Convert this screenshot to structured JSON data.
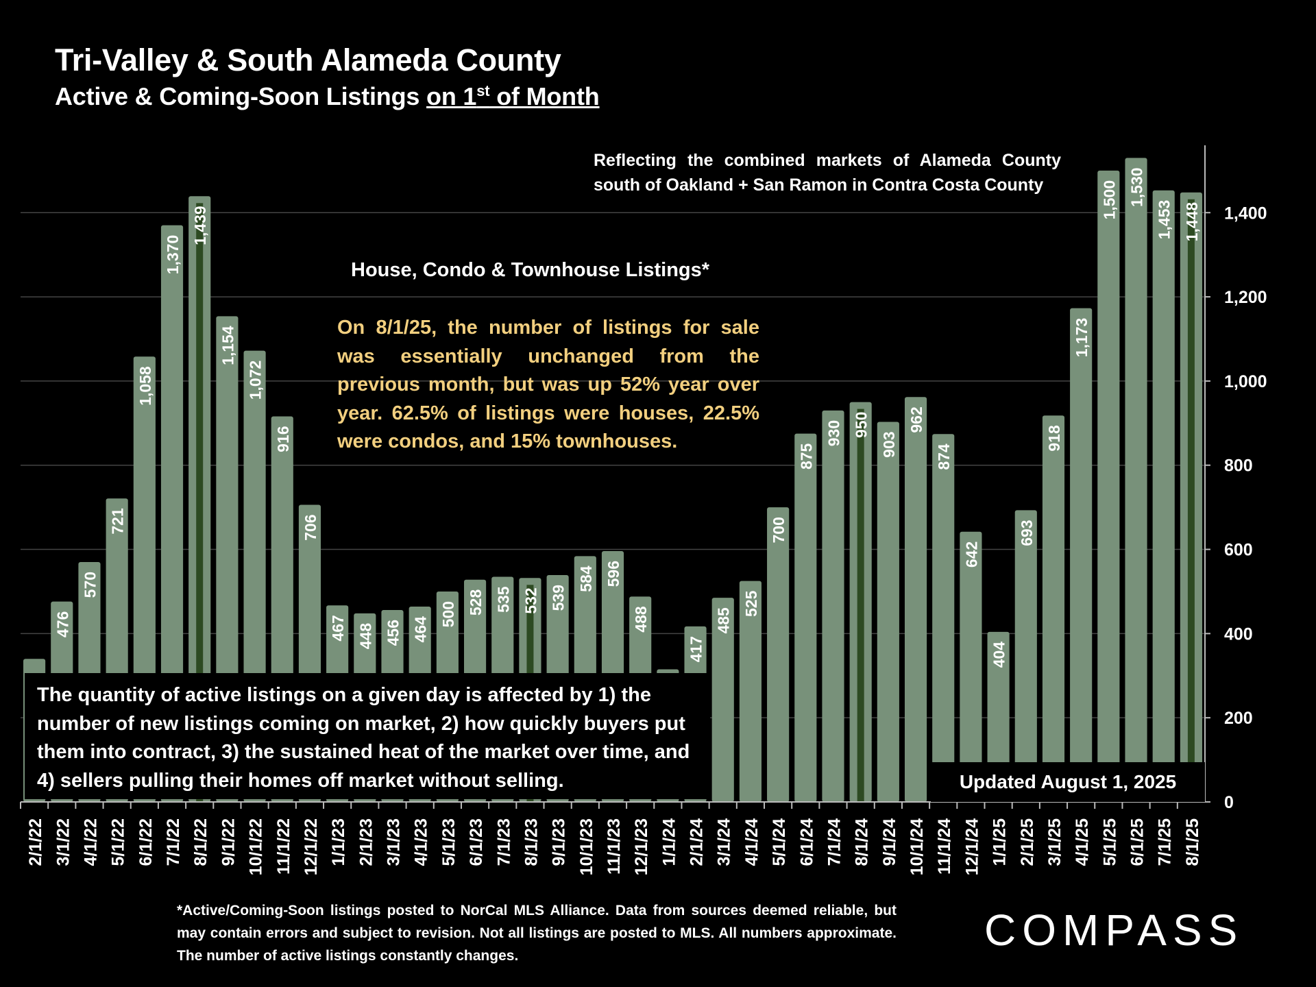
{
  "header": {
    "title": "Tri-Valley & South Alameda County",
    "subtitle_prefix": "Active & Coming-Soon Listings ",
    "subtitle_underlined": "on 1",
    "subtitle_sup": "st",
    "subtitle_suffix": " of Month"
  },
  "notes": {
    "markets": "Reflecting the combined markets of Alameda County south of Oakland + San Ramon in Contra Costa County",
    "heading": "House, Condo & Townhouse Listings*",
    "summary": "On 8/1/25, the number of listings for sale was essentially unchanged from the previous month, but was up 52% year over year. 62.5% of listings were houses, 22.5% were condos, and 15% townhouses.",
    "factors": "The quantity of active listings on a given day is affected by 1) the number of new listings coming on market, 2) how quickly buyers put them into contract, 3) the sustained heat of the market over time, and 4) sellers pulling their homes off market without selling.",
    "updated": "Updated August 1, 2025"
  },
  "footnote": "*Active/Coming-Soon listings posted to NorCal MLS Alliance.  Data from sources deemed reliable, but may contain errors and subject to revision.  Not all listings are posted to MLS. All numbers approximate. The number of active listings constantly changes.",
  "logo": "COMPASS",
  "colors": {
    "background": "#000000",
    "bar": "#78917a",
    "highlight": "#2d4a22",
    "summary_text": "#f2cf7f",
    "grid": "#444444"
  },
  "chart_data": {
    "type": "bar",
    "categories": [
      "2/1/22",
      "3/1/22",
      "4/1/22",
      "5/1/22",
      "6/1/22",
      "7/1/22",
      "8/1/22",
      "9/1/22",
      "10/1/22",
      "11/1/22",
      "12/1/22",
      "1/1/23",
      "2/1/23",
      "3/1/23",
      "4/1/23",
      "5/1/23",
      "6/1/23",
      "7/1/23",
      "8/1/23",
      "9/1/23",
      "10/1/23",
      "11/1/23",
      "12/1/23",
      "1/1/24",
      "2/1/24",
      "3/1/24",
      "4/1/24",
      "5/1/24",
      "6/1/24",
      "7/1/24",
      "8/1/24",
      "9/1/24",
      "10/1/24",
      "11/1/24",
      "12/1/24",
      "1/1/25",
      "2/1/25",
      "3/1/25",
      "4/1/25",
      "5/1/25",
      "6/1/25",
      "7/1/25",
      "8/1/25"
    ],
    "values": [
      340,
      476,
      570,
      721,
      1058,
      1370,
      1439,
      1154,
      1072,
      916,
      706,
      467,
      448,
      456,
      464,
      500,
      528,
      535,
      532,
      539,
      584,
      596,
      488,
      315,
      417,
      485,
      525,
      700,
      875,
      930,
      950,
      903,
      962,
      874,
      642,
      404,
      693,
      918,
      1173,
      1500,
      1530,
      1453,
      1448
    ],
    "data_labels": [
      "",
      "476",
      "570",
      "721",
      "1,058",
      "1,370",
      "1,439",
      "1,154",
      "1,072",
      "916",
      "706",
      "467",
      "448",
      "456",
      "464",
      "500",
      "528",
      "535",
      "532",
      "539",
      "584",
      "596",
      "488",
      "",
      "417",
      "485",
      "525",
      "700",
      "875",
      "930",
      "950",
      "903",
      "962",
      "874",
      "642",
      "404",
      "693",
      "918",
      "1,173",
      "1,500",
      "1,530",
      "1,453",
      "1,448"
    ],
    "highlight_categories": [
      "8/1/22",
      "8/1/23",
      "8/1/24",
      "8/1/25"
    ],
    "ylim": [
      0,
      1560
    ],
    "yticks": [
      0,
      200,
      400,
      600,
      800,
      1000,
      1200,
      1400
    ],
    "ytick_labels": [
      "0",
      "200",
      "400",
      "600",
      "800",
      "1,000",
      "1,200",
      "1,400"
    ],
    "grid": true,
    "y_axis_side": "right"
  }
}
